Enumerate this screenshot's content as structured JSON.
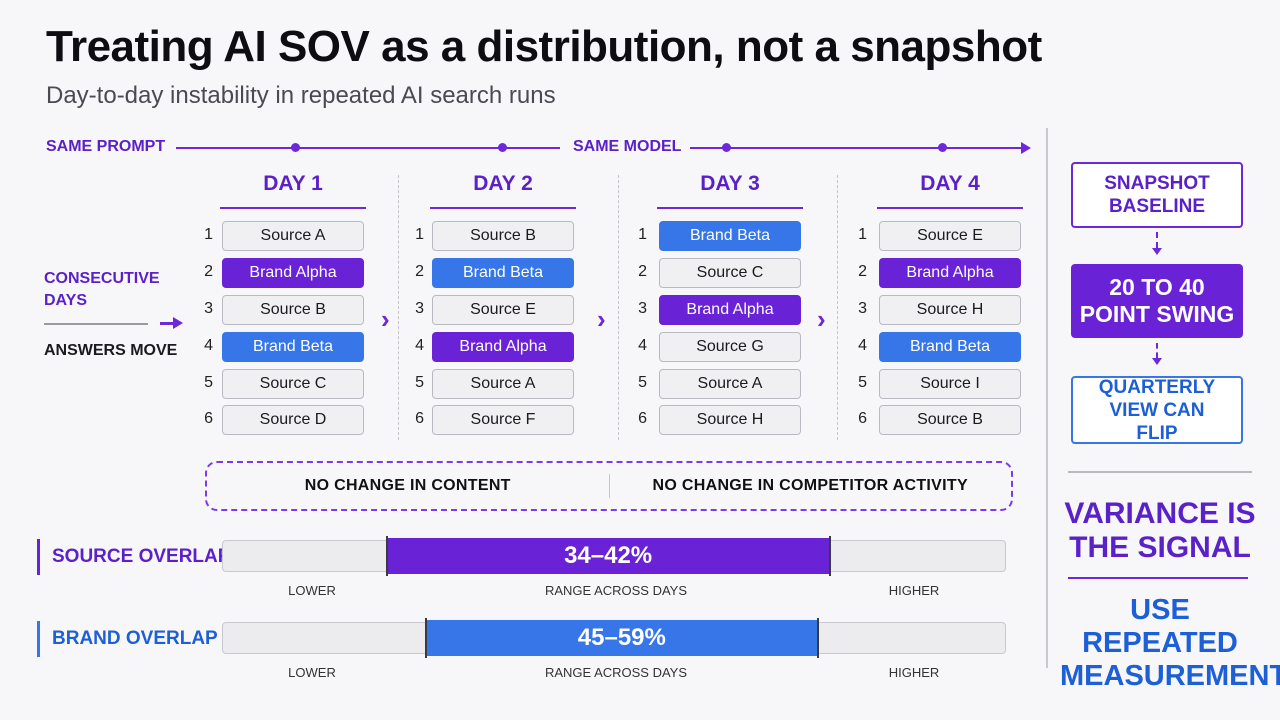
{
  "title": "Treating AI SOV as a distribution, not a snapshot",
  "subtitle": "Day-to-day instability in repeated AI search runs",
  "flow": {
    "left": "SAME PROMPT",
    "right": "SAME MODEL"
  },
  "left_labels": {
    "top": "CONSECUTIVE DAYS",
    "bottom": "ANSWERS MOVE"
  },
  "days": [
    {
      "label": "DAY 1",
      "items": [
        {
          "n": "1",
          "text": "Source A",
          "kind": "plain"
        },
        {
          "n": "2",
          "text": "Brand Alpha",
          "kind": "alpha"
        },
        {
          "n": "3",
          "text": "Source B",
          "kind": "plain"
        },
        {
          "n": "4",
          "text": "Brand Beta",
          "kind": "beta"
        },
        {
          "n": "5",
          "text": "Source C",
          "kind": "plain"
        },
        {
          "n": "6",
          "text": "Source D",
          "kind": "plain"
        }
      ]
    },
    {
      "label": "DAY 2",
      "items": [
        {
          "n": "1",
          "text": "Source B",
          "kind": "plain"
        },
        {
          "n": "2",
          "text": "Brand Beta",
          "kind": "beta"
        },
        {
          "n": "3",
          "text": "Source E",
          "kind": "plain"
        },
        {
          "n": "4",
          "text": "Brand Alpha",
          "kind": "alpha"
        },
        {
          "n": "5",
          "text": "Source A",
          "kind": "plain"
        },
        {
          "n": "6",
          "text": "Source F",
          "kind": "plain"
        }
      ]
    },
    {
      "label": "DAY 3",
      "items": [
        {
          "n": "1",
          "text": "Brand Beta",
          "kind": "beta"
        },
        {
          "n": "2",
          "text": "Source C",
          "kind": "plain"
        },
        {
          "n": "3",
          "text": "Brand Alpha",
          "kind": "alpha"
        },
        {
          "n": "4",
          "text": "Source G",
          "kind": "plain"
        },
        {
          "n": "5",
          "text": "Source A",
          "kind": "plain"
        },
        {
          "n": "6",
          "text": "Source H",
          "kind": "plain"
        }
      ]
    },
    {
      "label": "DAY 4",
      "items": [
        {
          "n": "1",
          "text": "Source E",
          "kind": "plain"
        },
        {
          "n": "2",
          "text": "Brand Alpha",
          "kind": "alpha"
        },
        {
          "n": "3",
          "text": "Source H",
          "kind": "plain"
        },
        {
          "n": "4",
          "text": "Brand Beta",
          "kind": "beta"
        },
        {
          "n": "5",
          "text": "Source I",
          "kind": "plain"
        },
        {
          "n": "6",
          "text": "Source B",
          "kind": "plain"
        }
      ]
    }
  ],
  "no_change": {
    "left": "NO CHANGE IN CONTENT",
    "right": "NO CHANGE IN COMPETITOR ACTIVITY"
  },
  "bars": [
    {
      "label": "SOURCE OVERLAP",
      "range_text": "34–42%",
      "range_start": 0.21,
      "range_end": 0.775,
      "color": "#6a22d6",
      "lower": "LOWER",
      "middle": "RANGE ACROSS DAYS",
      "higher": "HIGHER"
    },
    {
      "label": "BRAND OVERLAP",
      "range_text": "45–59%",
      "range_start": 0.26,
      "range_end": 0.76,
      "color": "#3676e8",
      "lower": "LOWER",
      "middle": "RANGE ACROSS DAYS",
      "higher": "HIGHER"
    }
  ],
  "right": {
    "box1": "SNAPSHOT BASELINE",
    "box2": "20 TO 40 POINT SWING",
    "box3": "QUARTERLY VIEW CAN FLIP",
    "statement1": "VARIANCE IS THE SIGNAL",
    "statement2": "USE REPEATED MEASUREMENT"
  },
  "colors": {
    "purple": "#6a22d6",
    "blue": "#3676e8"
  }
}
